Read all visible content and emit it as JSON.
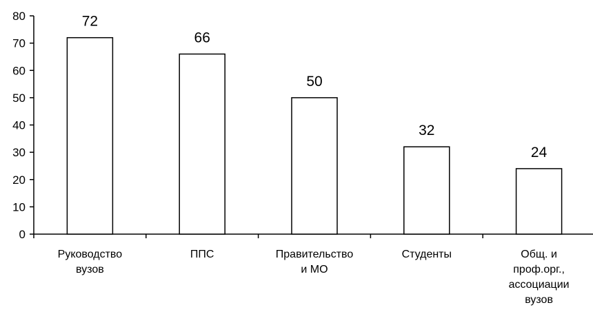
{
  "chart_data": {
    "type": "bar",
    "categories": [
      [
        "Руководство",
        "вузов"
      ],
      [
        "ППС"
      ],
      [
        "Правительство",
        "и МО"
      ],
      [
        "Студенты"
      ],
      [
        "Общ. и",
        "проф.орг.,",
        "ассоциации",
        "вузов"
      ]
    ],
    "values": [
      72,
      66,
      50,
      32,
      24
    ],
    "data_labels": [
      "72",
      "66",
      "50",
      "32",
      "24"
    ],
    "y_ticks": [
      "0",
      "10",
      "20",
      "30",
      "40",
      "50",
      "60",
      "70",
      "80"
    ],
    "ylim": [
      0,
      80
    ],
    "bar_fill": "#ffffff",
    "bar_stroke": "#000000",
    "grid": false,
    "legend": "none"
  }
}
